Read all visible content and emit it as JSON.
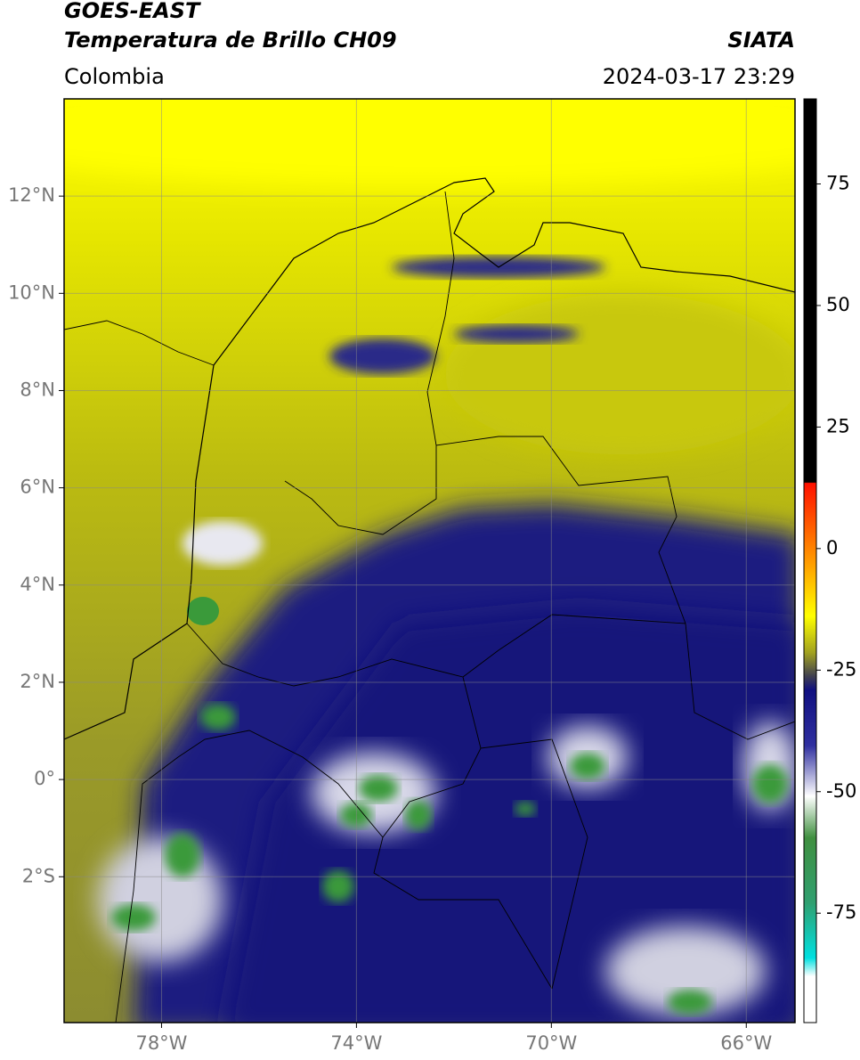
{
  "header": {
    "satellite": "GOES-EAST",
    "title": "Temperatura de Brillo CH09",
    "source": "SIATA",
    "region": "Colombia",
    "datetime": "2024-03-17 23:29"
  },
  "map": {
    "xlim": [
      -80,
      -65
    ],
    "ylim": [
      -5,
      14
    ],
    "xticks": [
      {
        "value": -78,
        "label": "78°W"
      },
      {
        "value": -74,
        "label": "74°W"
      },
      {
        "value": -70,
        "label": "70°W"
      },
      {
        "value": -66,
        "label": "66°W"
      }
    ],
    "yticks": [
      {
        "value": 12,
        "label": "12°N"
      },
      {
        "value": 10,
        "label": "10°N"
      },
      {
        "value": 8,
        "label": "8°N"
      },
      {
        "value": 6,
        "label": "6°N"
      },
      {
        "value": 4,
        "label": "4°N"
      },
      {
        "value": 2,
        "label": "2°N"
      },
      {
        "value": 0,
        "label": "0°"
      },
      {
        "value": -2,
        "label": "2°S"
      }
    ],
    "grid": true
  },
  "colorbar": {
    "lim": [
      -97.5,
      92.5
    ],
    "ticks": [
      75,
      50,
      25,
      0,
      -25,
      -50,
      -75
    ]
  }
}
